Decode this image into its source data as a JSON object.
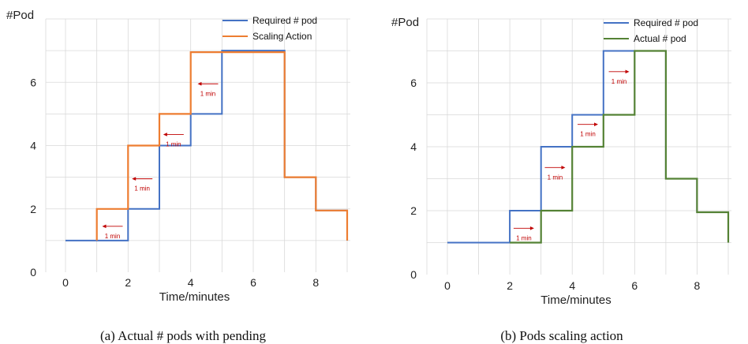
{
  "colors": {
    "required": "#4472c4",
    "scaling": "#ed7d31",
    "actual": "#548235",
    "arrow": "#c00000",
    "grid": "#d9d9d9"
  },
  "chart_data": [
    {
      "type": "line",
      "step": true,
      "caption": "(a)  Actual # pods with pending",
      "ylabel": "#Pod",
      "xlabel": "Time/minutes",
      "xlim": [
        -1,
        9
      ],
      "ylim": [
        0,
        8
      ],
      "x_ticks": [
        0,
        2,
        4,
        6,
        8
      ],
      "y_ticks": [
        0,
        2,
        4,
        6
      ],
      "grid": true,
      "legend": "top-right",
      "series": [
        {
          "name": "Required # pod",
          "color_key": "required",
          "x": [
            0,
            2,
            2,
            3,
            3,
            4,
            4,
            5,
            5,
            7,
            7,
            8,
            8,
            9,
            9
          ],
          "y": [
            1,
            1,
            2,
            2,
            4,
            4,
            5,
            5,
            7,
            7,
            3,
            3,
            1.95,
            1.95,
            1
          ]
        },
        {
          "name": "Scaling Action",
          "color_key": "scaling",
          "x": [
            1,
            1,
            2,
            2,
            3,
            3,
            4,
            4,
            7,
            7,
            8,
            8,
            9,
            9
          ],
          "y": [
            1,
            2,
            2,
            4,
            4,
            5,
            5,
            6.95,
            6.95,
            3,
            3,
            1.95,
            1.95,
            1
          ]
        }
      ],
      "annotations": [
        {
          "text": "1 min",
          "x": 1.5,
          "y": 1.45,
          "direction": "left"
        },
        {
          "text": "1 min",
          "x": 2.45,
          "y": 2.95,
          "direction": "left"
        },
        {
          "text": "1 min",
          "x": 3.45,
          "y": 4.35,
          "direction": "left"
        },
        {
          "text": "1 min",
          "x": 4.55,
          "y": 5.95,
          "direction": "left"
        }
      ]
    },
    {
      "type": "line",
      "step": true,
      "caption": "(b)  Pods scaling action",
      "ylabel": "#Pod",
      "xlabel": "Time/minutes",
      "xlim": [
        -1,
        9
      ],
      "ylim": [
        0,
        8
      ],
      "x_ticks": [
        0,
        2,
        4,
        6,
        8
      ],
      "y_ticks": [
        0,
        2,
        4,
        6
      ],
      "grid": true,
      "legend": "top-right",
      "series": [
        {
          "name": "Required # pod",
          "color_key": "required",
          "x": [
            0,
            2,
            2,
            3,
            3,
            4,
            4,
            5,
            5,
            7,
            7,
            8,
            8,
            9,
            9
          ],
          "y": [
            1,
            1,
            2,
            2,
            4,
            4,
            5,
            5,
            7,
            7,
            3,
            3,
            1.95,
            1.95,
            1
          ]
        },
        {
          "name": "Actual # pod",
          "color_key": "actual",
          "x": [
            2,
            3,
            3,
            4,
            4,
            5,
            5,
            6,
            6,
            7,
            7,
            8,
            8,
            9,
            9
          ],
          "y": [
            1,
            1,
            2,
            2,
            4,
            4,
            5,
            5,
            7,
            7,
            3,
            3,
            1.95,
            1.95,
            1
          ]
        }
      ],
      "annotations": [
        {
          "text": "1 min",
          "x": 2.45,
          "y": 1.45,
          "direction": "right"
        },
        {
          "text": "1 min",
          "x": 3.45,
          "y": 3.35,
          "direction": "right"
        },
        {
          "text": "1 min",
          "x": 4.5,
          "y": 4.7,
          "direction": "right"
        },
        {
          "text": "1 min",
          "x": 5.5,
          "y": 6.35,
          "direction": "right"
        }
      ]
    }
  ]
}
